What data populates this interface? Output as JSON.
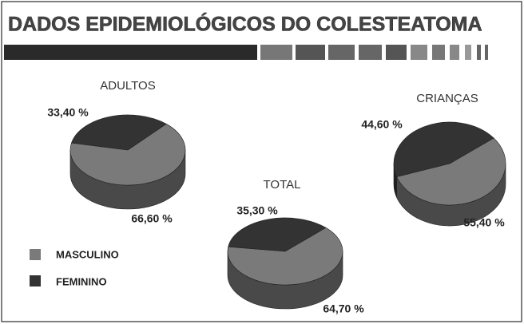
{
  "title": "DADOS EPIDEMIOLÓGICOS DO COLESTEATOMA",
  "chart_data": [
    {
      "type": "pie",
      "title": "ADULTOS",
      "categories": [
        "MASCULINO",
        "FEMININO"
      ],
      "values": [
        66.6,
        33.4
      ],
      "value_labels": [
        "66,60 %",
        "33,40 %"
      ],
      "colors": [
        "#7a7a7a",
        "#333333"
      ]
    },
    {
      "type": "pie",
      "title": "TOTAL",
      "categories": [
        "MASCULINO",
        "FEMININO"
      ],
      "values": [
        64.7,
        35.3
      ],
      "value_labels": [
        "64,70 %",
        "35,30 %"
      ],
      "colors": [
        "#7a7a7a",
        "#333333"
      ]
    },
    {
      "type": "pie",
      "title": "CRIANÇAS",
      "categories": [
        "MASCULINO",
        "FEMININO"
      ],
      "values": [
        55.4,
        44.6
      ],
      "value_labels": [
        "55,40 %",
        "44,60 %"
      ],
      "colors": [
        "#7a7a7a",
        "#333333"
      ]
    }
  ]
}
